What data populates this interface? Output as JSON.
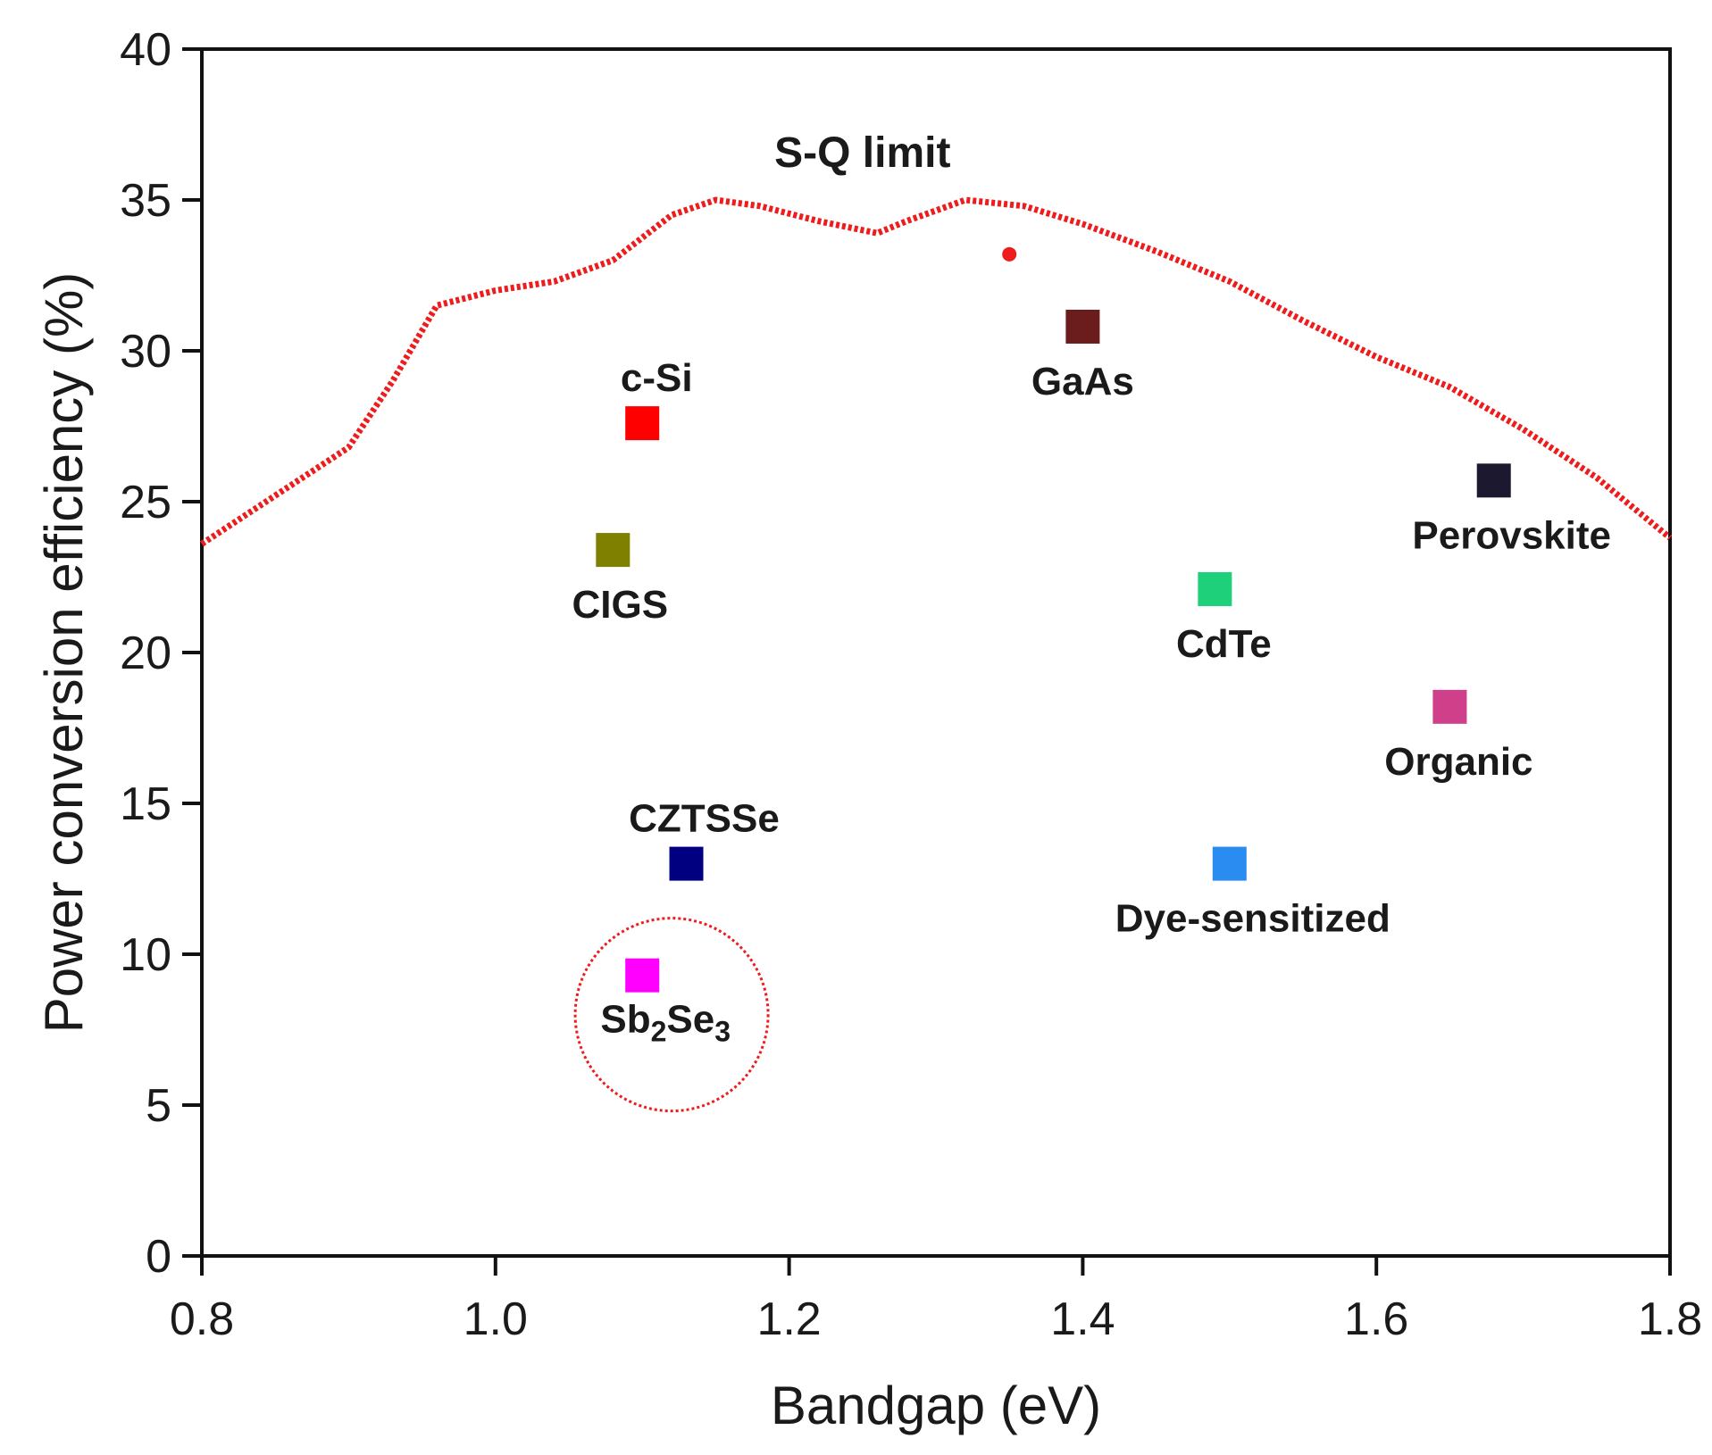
{
  "chart_data": {
    "type": "scatter",
    "title": "",
    "xlabel": "Bandgap (eV)",
    "ylabel": "Power conversion efficiency (%)",
    "xlim": [
      0.8,
      1.8
    ],
    "ylim": [
      0,
      40
    ],
    "xticks": [
      "0.8",
      "1.0",
      "1.2",
      "1.4",
      "1.6",
      "1.8"
    ],
    "yticks": [
      "0",
      "5",
      "10",
      "15",
      "20",
      "25",
      "30",
      "35",
      "40"
    ],
    "grid": false,
    "sq_limit": {
      "label": "S-Q limit",
      "color": "#ee1c1c",
      "x": [
        0.8,
        0.85,
        0.9,
        0.93,
        0.96,
        1.0,
        1.04,
        1.08,
        1.12,
        1.15,
        1.18,
        1.22,
        1.26,
        1.28,
        1.32,
        1.36,
        1.4,
        1.45,
        1.5,
        1.55,
        1.6,
        1.65,
        1.7,
        1.75,
        1.8
      ],
      "y": [
        23.6,
        25.2,
        26.8,
        29.0,
        31.5,
        32.0,
        32.3,
        33.0,
        34.5,
        35.0,
        34.8,
        34.3,
        33.9,
        34.3,
        35.0,
        34.8,
        34.2,
        33.3,
        32.3,
        31.0,
        29.8,
        28.8,
        27.4,
        25.8,
        23.8
      ]
    },
    "extra_point": {
      "x": 1.35,
      "y": 33.2,
      "color": "#ee1c1c"
    },
    "points": [
      {
        "name": "c-Si",
        "x": 1.1,
        "y": 27.6,
        "color": "#ff0000",
        "label_pos": "above"
      },
      {
        "name": "CIGS",
        "x": 1.08,
        "y": 23.4,
        "color": "#7f7f00",
        "label_pos": "below"
      },
      {
        "name": "CZTSSe",
        "x": 1.13,
        "y": 13.0,
        "color": "#000080",
        "label_pos": "above"
      },
      {
        "name": "Sb2Se3",
        "base": "Sb",
        "sub1": "2",
        "mid": "Se",
        "sub2": "3",
        "x": 1.1,
        "y": 9.3,
        "color": "#ff00ff",
        "label_pos": "below",
        "highlight_circle": true
      },
      {
        "name": "GaAs",
        "x": 1.4,
        "y": 30.8,
        "color": "#6b1c1c",
        "label_pos": "below"
      },
      {
        "name": "CdTe",
        "x": 1.49,
        "y": 22.1,
        "color": "#1fd07a",
        "label_pos": "below"
      },
      {
        "name": "Dye-sensitized",
        "x": 1.5,
        "y": 13.0,
        "color": "#2a8cf0",
        "label_pos": "below"
      },
      {
        "name": "Organic",
        "x": 1.65,
        "y": 18.2,
        "color": "#d0408a",
        "label_pos": "below"
      },
      {
        "name": "Perovskite",
        "x": 1.68,
        "y": 25.7,
        "color": "#1c1830",
        "label_pos": "below"
      }
    ]
  }
}
